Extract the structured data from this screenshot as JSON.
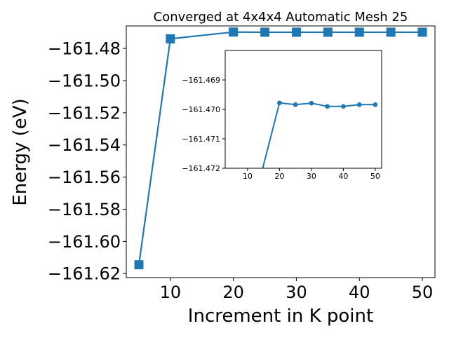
{
  "chart_data": [
    {
      "type": "line",
      "title": "Converged at 4x4x4 Automatic Mesh 25",
      "xlabel": "Increment in K point",
      "ylabel": "Energy (eV)",
      "xlim": [
        3,
        52
      ],
      "ylim": [
        -161.6225,
        -161.466
      ],
      "xticks": [
        10,
        20,
        30,
        40,
        50
      ],
      "yticks": [
        -161.62,
        -161.6,
        -161.58,
        -161.56,
        -161.54,
        -161.52,
        -161.5,
        -161.48
      ],
      "ytick_labels": [
        "−161.62",
        "−161.60",
        "−161.58",
        "−161.56",
        "−161.54",
        "−161.52",
        "−161.50",
        "−161.48"
      ],
      "marker": "square",
      "color": "#1f77b4",
      "series": [
        {
          "x": [
            5,
            10,
            20,
            25,
            30,
            35,
            40,
            45,
            50
          ],
          "y": [
            -161.6145,
            -161.474,
            -161.4698,
            -161.4699,
            -161.4699,
            -161.4699,
            -161.4699,
            -161.4699,
            -161.4699
          ]
        }
      ]
    },
    {
      "type": "line",
      "title": "",
      "xlabel": "",
      "ylabel": "",
      "xlim": [
        3,
        52
      ],
      "ylim": [
        -161.472,
        -161.468
      ],
      "xticks": [
        10,
        20,
        30,
        40,
        50
      ],
      "yticks": [
        -161.472,
        -161.471,
        -161.47,
        -161.469
      ],
      "ytick_labels": [
        "−161.472",
        "−161.471",
        "−161.470",
        "−161.469"
      ],
      "marker": "circle",
      "color": "#1f77b4",
      "series": [
        {
          "x": [
            10,
            20,
            25,
            30,
            35,
            40,
            45,
            50
          ],
          "y": [
            -161.474,
            -161.46978,
            -161.46984,
            -161.46979,
            -161.4699,
            -161.4699,
            -161.46984,
            -161.46984
          ]
        }
      ]
    }
  ]
}
